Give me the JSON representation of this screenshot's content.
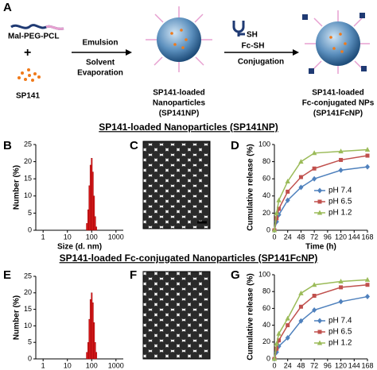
{
  "figure": {
    "panels": [
      "A",
      "B",
      "C",
      "D",
      "E",
      "F",
      "G"
    ],
    "polymer": "Mal-PEG-PCL",
    "plus": "+",
    "drug": "SP141",
    "step1_top": "Emulsion",
    "step1_bottom": [
      "Solvent",
      "Evaporation"
    ],
    "np_label": [
      "SP141-loaded",
      "Nanoparticles",
      "(SP141NP)"
    ],
    "ligand_group": "SH",
    "ligand": "Fc-SH",
    "step2": "Conjugation",
    "fcnp_label": [
      "SP141-loaded",
      "Fc-conjugated NPs",
      "(SP141FcNP)"
    ],
    "row1_title": "SP141-loaded Nanoparticles (SP141NP)",
    "row2_title": "SP141-loaded Fc-conjugated Nanoparticles (SP141FcNP)"
  },
  "chart_data": [
    {
      "type": "histogram",
      "xlabel": "Size (d. nm)",
      "ylabel": "Number (%)",
      "log_x": true,
      "xlim": [
        0.5,
        2000
      ],
      "xticks": [
        1,
        10,
        100,
        1000
      ],
      "ylim": [
        0,
        25
      ],
      "yticks": [
        0,
        5,
        10,
        15,
        20,
        25
      ],
      "bins": [
        60,
        68,
        76,
        85,
        95,
        106,
        118,
        132,
        147,
        164
      ],
      "counts": [
        2,
        6,
        13,
        19,
        21,
        17,
        10,
        4,
        1
      ],
      "color": "#e31a1c"
    },
    {
      "type": "line",
      "xlabel": "Time (h)",
      "ylabel": "Cumulative release (%)",
      "xlim": [
        0,
        168
      ],
      "xticks": [
        0,
        24,
        48,
        72,
        96,
        120,
        144,
        168
      ],
      "ylim": [
        0,
        100
      ],
      "yticks": [
        0,
        20,
        40,
        60,
        80,
        100
      ],
      "legend": "right",
      "x": [
        0,
        4,
        8,
        24,
        48,
        72,
        120,
        168
      ],
      "series": [
        {
          "name": "pH 7.4",
          "color": "#4f81bd",
          "marker": "diamond",
          "values": [
            0,
            10,
            18,
            35,
            50,
            60,
            70,
            74
          ]
        },
        {
          "name": "pH 6.5",
          "color": "#c0504d",
          "marker": "square",
          "values": [
            0,
            14,
            25,
            45,
            62,
            72,
            82,
            87
          ]
        },
        {
          "name": "pH 1.2",
          "color": "#9bbb59",
          "marker": "triangle",
          "values": [
            0,
            20,
            35,
            57,
            80,
            90,
            92,
            94
          ]
        }
      ]
    },
    {
      "type": "histogram",
      "xlabel": "Size (d. nm)",
      "ylabel": "Number (%)",
      "log_x": true,
      "xlim": [
        0.5,
        2000
      ],
      "xticks": [
        1,
        10,
        100,
        1000
      ],
      "ylim": [
        0,
        25
      ],
      "yticks": [
        0,
        5,
        10,
        15,
        20,
        25
      ],
      "bins": [
        60,
        68,
        76,
        85,
        95,
        106,
        118,
        132,
        147,
        164
      ],
      "counts": [
        2,
        5,
        12,
        18,
        20,
        17,
        11,
        5,
        2
      ],
      "color": "#e31a1c"
    },
    {
      "type": "line",
      "xlabel": "Time (h)",
      "ylabel": "Cumulative release (%)",
      "xlim": [
        0,
        168
      ],
      "xticks": [
        0,
        24,
        48,
        72,
        96,
        120,
        144,
        168
      ],
      "ylim": [
        0,
        100
      ],
      "yticks": [
        0,
        20,
        40,
        60,
        80,
        100
      ],
      "legend": "right",
      "x": [
        0,
        4,
        8,
        24,
        48,
        72,
        120,
        168
      ],
      "series": [
        {
          "name": "pH 7.4",
          "color": "#4f81bd",
          "marker": "diamond",
          "values": [
            0,
            8,
            15,
            25,
            45,
            58,
            68,
            74
          ]
        },
        {
          "name": "pH 6.5",
          "color": "#c0504d",
          "marker": "square",
          "values": [
            0,
            12,
            22,
            40,
            62,
            75,
            85,
            88
          ]
        },
        {
          "name": "pH 1.2",
          "color": "#9bbb59",
          "marker": "triangle",
          "values": [
            0,
            18,
            30,
            48,
            78,
            88,
            92,
            94
          ]
        }
      ]
    }
  ]
}
